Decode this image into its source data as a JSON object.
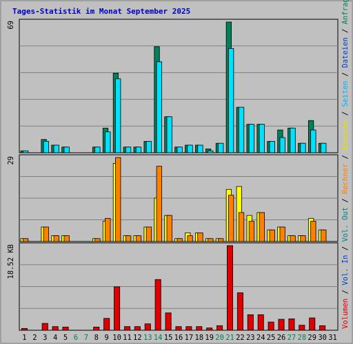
{
  "chart_data": {
    "type": "bar",
    "title": "Tages-Statistik im Monat September 2025",
    "categories": [
      "1",
      "2",
      "3",
      "4",
      "5",
      "6",
      "7",
      "8",
      "9",
      "10",
      "11",
      "12",
      "13",
      "14",
      "15",
      "16",
      "17",
      "18",
      "19",
      "20",
      "21",
      "22",
      "23",
      "24",
      "25",
      "26",
      "27",
      "28",
      "29",
      "30",
      "31"
    ],
    "weekend_days": [
      "6",
      "7",
      "13",
      "14",
      "20",
      "21",
      "27",
      "28"
    ],
    "panels": [
      {
        "id": "top",
        "max_label": "69",
        "ymax": 69,
        "series": [
          {
            "name": "Anfragen",
            "color": "#00805c",
            "values": [
              1,
              0,
              7,
              4,
              3,
              0,
              0,
              3,
              13,
              42,
              3,
              3,
              6,
              56,
              19,
              3,
              4,
              4,
              2,
              5,
              69,
              24,
              15,
              15,
              6,
              12,
              13,
              5,
              17,
              5,
              0
            ]
          },
          {
            "name": "Dateien",
            "color": "#00e0ff",
            "values": [
              1,
              0,
              6,
              4,
              3,
              0,
              0,
              3,
              11,
              39,
              3,
              3,
              6,
              48,
              19,
              3,
              4,
              4,
              1,
              5,
              55,
              24,
              15,
              15,
              6,
              8,
              13,
              5,
              12,
              5,
              0
            ]
          },
          {
            "name": "Seiten",
            "color": "#00c8ff",
            "values": [
              0,
              0,
              0,
              0,
              0,
              0,
              0,
              0,
              0,
              0,
              0,
              0,
              0,
              0,
              0,
              0,
              0,
              0,
              0,
              0,
              0,
              0,
              0,
              0,
              0,
              0,
              0,
              0,
              0,
              0,
              0
            ]
          }
        ]
      },
      {
        "id": "middle",
        "max_label": "29",
        "ymax": 29,
        "series": [
          {
            "name": "Besuche",
            "color": "#ffff00",
            "values": [
              1,
              0,
              5,
              2,
              2,
              0,
              0,
              1,
              7,
              27,
              2,
              2,
              5,
              15,
              9,
              1,
              3,
              3,
              1,
              1,
              18,
              19,
              9,
              10,
              4,
              5,
              2,
              2,
              8,
              4,
              0
            ]
          },
          {
            "name": "Rechner",
            "color": "#ff8000",
            "values": [
              1,
              0,
              5,
              2,
              2,
              0,
              0,
              1,
              8,
              29,
              2,
              2,
              5,
              26,
              9,
              1,
              2,
              3,
              1,
              1,
              16,
              10,
              7,
              10,
              4,
              5,
              2,
              2,
              7,
              4,
              0
            ]
          }
        ]
      },
      {
        "id": "bottom",
        "max_label": "18.52 KB",
        "ymax": 18.52,
        "series": [
          {
            "name": "Volumen",
            "color": "#e00000",
            "values": [
              0.4,
              0,
              1.5,
              0.8,
              0.7,
              0,
              0,
              0.7,
              2.6,
              9.5,
              0.8,
              0.8,
              1.4,
              11.1,
              3.8,
              0.8,
              0.8,
              0.8,
              0.5,
              1,
              18.52,
              8.2,
              3.4,
              3.4,
              1.8,
              2.4,
              2.5,
              1.1,
              2.7,
              1,
              0
            ]
          }
        ]
      }
    ],
    "right_legend": [
      {
        "text": "Volumen",
        "color": "#e00000"
      },
      {
        "text": " / ",
        "color": "#000000"
      },
      {
        "text": "Vol. In",
        "color": "#0040c0"
      },
      {
        "text": " / ",
        "color": "#000000"
      },
      {
        "text": "Vol. Out",
        "color": "#008080"
      },
      {
        "text": " / ",
        "color": "#000000"
      },
      {
        "text": "Rechner",
        "color": "#ff8000"
      },
      {
        "text": " / ",
        "color": "#000000"
      },
      {
        "text": "Besuche",
        "color": "#e0e000"
      },
      {
        "text": " / ",
        "color": "#000000"
      },
      {
        "text": "Seiten",
        "color": "#00b0ff"
      },
      {
        "text": " / ",
        "color": "#000000"
      },
      {
        "text": "Dateien",
        "color": "#0040c0"
      },
      {
        "text": " / ",
        "color": "#000000"
      },
      {
        "text": "Anfragen",
        "color": "#00805c"
      }
    ],
    "colors": {
      "background": "#c0c0c0",
      "title": "#0000c0",
      "weekday_label": "#000000",
      "weekend_label": "#00805c",
      "gridline": "#808080"
    }
  }
}
